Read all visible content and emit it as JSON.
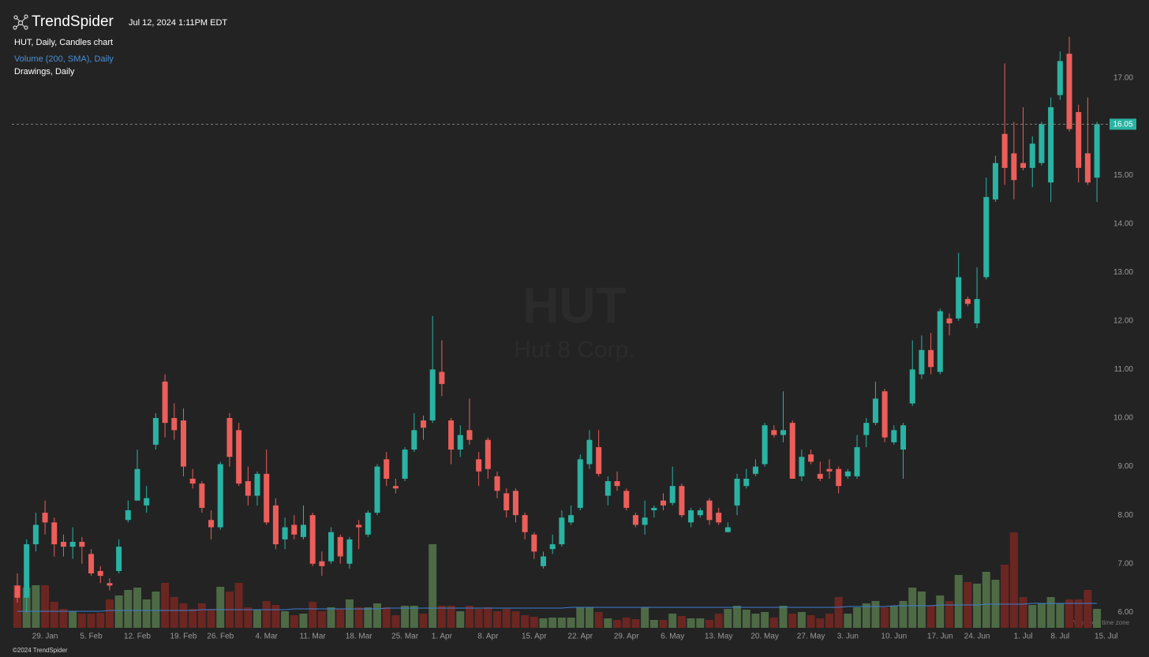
{
  "header": {
    "logo": "TrendSpider",
    "timestamp": "Jul 12, 2024 1:11PM EDT",
    "chart_label": "HUT, Daily, Candles chart",
    "volume_label": "Volume (200, SMA), Daily",
    "drawings_label": "Drawings, Daily",
    "watermark_symbol": "HUT",
    "watermark_name": "Hut 8 Corp.",
    "timezone_note": "Your local time zone",
    "copyright": "©2024 TrendSpider"
  },
  "chart_data": {
    "type": "candlestick",
    "categories": [
      null,
      null,
      null,
      "29. Jan",
      null,
      null,
      null,
      null,
      "5. Feb",
      null,
      null,
      null,
      null,
      "12. Feb",
      null,
      null,
      null,
      null,
      "19. Feb",
      null,
      null,
      null,
      "26. Feb",
      null,
      null,
      null,
      null,
      "4. Mar",
      null,
      null,
      null,
      null,
      "11. Mar",
      null,
      null,
      null,
      null,
      "18. Mar",
      null,
      null,
      null,
      null,
      "25. Mar",
      null,
      null,
      null,
      "1. Apr",
      null,
      null,
      null,
      null,
      "8. Apr",
      null,
      null,
      null,
      null,
      "15. Apr",
      null,
      null,
      null,
      null,
      "22. Apr",
      null,
      null,
      null,
      null,
      "29. Apr",
      null,
      null,
      null,
      null,
      "6. May",
      null,
      null,
      null,
      null,
      "13. May",
      null,
      null,
      null,
      null,
      "20. May",
      null,
      null,
      null,
      null,
      "27. May",
      null,
      null,
      null,
      "3. Jun",
      null,
      null,
      null,
      null,
      "10. Jun",
      null,
      null,
      null,
      null,
      "17. Jun",
      null,
      null,
      null,
      "24. Jun",
      null,
      null,
      null,
      null,
      "1. Jul",
      null,
      null,
      null,
      "8. Jul",
      null,
      null,
      null,
      null,
      "15. Jul"
    ],
    "open": [
      6.55,
      6.3,
      7.4,
      8.05,
      7.85,
      7.45,
      7.35,
      7.45,
      7.2,
      6.85,
      6.6,
      6.85,
      7.9,
      8.3,
      8.2,
      9.45,
      10.75,
      10.0,
      9.95,
      8.75,
      8.65,
      7.9,
      7.75,
      10.0,
      9.75,
      8.7,
      8.4,
      8.85,
      8.2,
      7.5,
      7.8,
      7.55,
      8.0,
      7.05,
      7.05,
      7.55,
      7.0,
      7.8,
      7.6,
      8.05,
      9.15,
      8.6,
      8.75,
      9.35,
      9.95,
      9.95,
      10.95,
      9.95,
      9.35,
      9.75,
      9.15,
      9.55,
      8.8,
      8.45,
      8.5,
      8.0,
      7.6,
      6.95,
      7.3,
      7.4,
      7.85,
      8.15,
      9.05,
      9.4,
      8.4,
      8.7,
      8.5,
      8.0,
      7.8,
      8.1,
      8.3,
      8.25,
      8.6,
      7.85,
      8.0,
      8.3,
      8.05,
      7.65,
      8.2,
      8.6,
      8.85,
      9.05,
      9.75,
      9.65,
      9.9,
      8.8,
      9.25,
      8.85,
      8.95,
      8.95,
      8.8,
      8.8,
      9.65,
      9.9,
      10.55,
      9.5,
      9.35,
      10.3,
      10.9,
      11.4,
      10.95,
      12.05,
      12.05,
      12.45,
      11.95,
      12.9,
      14.5,
      15.85,
      15.45,
      15.25,
      15.15,
      15.25,
      14.85,
      16.65,
      17.5,
      16.3,
      15.45,
      14.95,
      null
    ],
    "high": [
      6.8,
      7.5,
      8.05,
      8.3,
      7.95,
      7.6,
      7.75,
      7.55,
      7.3,
      6.95,
      6.7,
      7.5,
      8.3,
      9.35,
      8.6,
      10.1,
      10.9,
      10.3,
      10.2,
      8.95,
      8.7,
      8.1,
      9.1,
      10.1,
      9.9,
      9.0,
      8.9,
      9.35,
      8.35,
      7.95,
      8.0,
      8.2,
      8.05,
      7.25,
      7.75,
      7.6,
      7.55,
      7.9,
      8.1,
      9.05,
      9.3,
      8.75,
      9.4,
      10.1,
      10.05,
      12.1,
      11.6,
      10.0,
      9.85,
      10.4,
      9.3,
      9.6,
      8.9,
      8.55,
      8.55,
      8.05,
      7.65,
      7.25,
      7.6,
      8.1,
      8.2,
      9.25,
      9.75,
      9.75,
      8.8,
      8.9,
      8.55,
      8.05,
      8.3,
      8.2,
      8.45,
      9.0,
      8.65,
      8.15,
      8.15,
      8.35,
      8.15,
      7.85,
      8.85,
      8.95,
      9.15,
      9.9,
      9.85,
      10.55,
      9.95,
      9.35,
      9.35,
      9.1,
      9.15,
      9.0,
      8.95,
      9.65,
      10.0,
      10.75,
      10.6,
      9.85,
      9.9,
      11.6,
      11.7,
      11.75,
      12.25,
      12.15,
      13.4,
      12.5,
      13.1,
      14.95,
      15.4,
      17.3,
      16.1,
      16.4,
      15.8,
      16.1,
      16.6,
      17.55,
      17.85,
      16.45,
      16.6,
      16.1,
      null
    ],
    "low": [
      6.2,
      6.0,
      7.25,
      7.6,
      7.15,
      7.15,
      7.1,
      7.0,
      6.75,
      6.6,
      6.45,
      6.8,
      7.85,
      8.3,
      8.05,
      9.35,
      9.6,
      9.55,
      8.8,
      8.55,
      8.05,
      7.5,
      7.7,
      9.0,
      8.6,
      8.2,
      8.2,
      7.8,
      7.3,
      7.3,
      7.5,
      7.5,
      6.95,
      6.75,
      7.0,
      7.0,
      6.9,
      7.3,
      7.55,
      8.0,
      8.6,
      8.45,
      8.7,
      9.3,
      9.55,
      9.9,
      10.45,
      9.05,
      9.2,
      9.45,
      8.6,
      8.75,
      8.35,
      7.95,
      7.85,
      7.5,
      7.1,
      6.9,
      7.2,
      7.35,
      7.8,
      8.1,
      8.95,
      8.8,
      8.2,
      8.5,
      8.1,
      7.75,
      7.6,
      7.95,
      8.1,
      8.2,
      7.95,
      7.75,
      7.95,
      7.8,
      7.8,
      7.65,
      8.0,
      8.55,
      8.8,
      9.0,
      9.6,
      9.5,
      8.75,
      8.7,
      9.05,
      8.7,
      8.75,
      8.45,
      8.75,
      8.75,
      9.4,
      9.85,
      9.5,
      9.45,
      8.75,
      10.25,
      10.8,
      10.9,
      10.9,
      11.7,
      12.0,
      12.3,
      11.85,
      12.85,
      14.45,
      14.8,
      14.5,
      15.1,
      14.75,
      15.2,
      14.45,
      16.55,
      15.9,
      14.85,
      14.8,
      14.45,
      null
    ],
    "close": [
      6.3,
      7.4,
      7.8,
      7.85,
      7.4,
      7.35,
      7.45,
      7.35,
      6.8,
      6.75,
      6.55,
      7.35,
      8.1,
      8.95,
      8.35,
      10.0,
      9.9,
      9.75,
      9.0,
      8.65,
      8.15,
      7.75,
      9.05,
      9.2,
      8.65,
      8.4,
      8.85,
      7.85,
      7.4,
      7.75,
      7.6,
      7.8,
      7.0,
      6.95,
      7.65,
      7.15,
      7.5,
      7.75,
      8.05,
      9.0,
      8.75,
      8.55,
      9.35,
      9.75,
      9.8,
      11.0,
      10.7,
      9.35,
      9.65,
      9.55,
      8.9,
      8.95,
      8.5,
      8.1,
      8.0,
      7.65,
      7.25,
      7.15,
      7.4,
      7.95,
      8.0,
      9.15,
      9.55,
      8.85,
      8.7,
      8.6,
      8.15,
      7.8,
      7.95,
      8.15,
      8.2,
      8.6,
      8.0,
      8.1,
      8.1,
      7.9,
      7.85,
      7.75,
      8.75,
      8.75,
      9.0,
      9.85,
      9.65,
      9.75,
      8.75,
      9.2,
      9.1,
      8.75,
      8.9,
      8.6,
      8.9,
      9.4,
      9.9,
      10.4,
      9.6,
      9.75,
      9.85,
      11.0,
      11.4,
      11.05,
      12.2,
      11.95,
      12.9,
      12.35,
      12.45,
      14.55,
      15.25,
      15.15,
      14.9,
      15.15,
      15.65,
      16.05,
      16.4,
      17.35,
      15.95,
      15.15,
      14.85,
      16.05,
      null
    ],
    "volume": [
      5.4,
      5.1,
      5.4,
      5.4,
      3.3,
      2.4,
      2.1,
      1.8,
      1.8,
      1.9,
      3.6,
      4.1,
      4.8,
      5.1,
      3.6,
      4.6,
      5.7,
      3.9,
      3.1,
      2.4,
      3.1,
      2.4,
      5.2,
      4.6,
      5.7,
      2.6,
      2.3,
      3.4,
      2.9,
      2.1,
      1.6,
      1.8,
      3.3,
      2.1,
      2.6,
      2.4,
      3.6,
      2.6,
      2.6,
      3.1,
      2.6,
      1.6,
      2.8,
      2.8,
      1.8,
      10.6,
      2.8,
      2.8,
      2.1,
      2.8,
      2.4,
      2.6,
      2.1,
      2.4,
      2.1,
      1.6,
      1.4,
      1.2,
      1.3,
      1.3,
      1.3,
      2.6,
      2.6,
      2.0,
      1.2,
      1.0,
      1.3,
      1.1,
      2.6,
      1.0,
      1.0,
      1.8,
      1.5,
      1.2,
      1.2,
      1.0,
      1.8,
      2.4,
      2.8,
      2.3,
      1.8,
      2.0,
      1.3,
      2.8,
      1.8,
      2.0,
      1.6,
      1.2,
      1.8,
      3.9,
      1.8,
      2.6,
      3.1,
      3.4,
      2.6,
      2.8,
      3.4,
      5.1,
      4.6,
      2.8,
      4.1,
      3.4,
      6.7,
      5.8,
      5.6,
      7.1,
      6.1,
      8.0,
      12.1,
      3.9,
      2.9,
      3.1,
      3.9,
      3.1,
      3.6,
      3.6,
      4.8,
      2.4,
      null
    ],
    "volume_sma": [
      2.1,
      2.1,
      2.1,
      2.1,
      2.1,
      2.1,
      2.1,
      2.1,
      2.1,
      2.1,
      2.2,
      2.2,
      2.2,
      2.2,
      2.2,
      2.2,
      2.2,
      2.2,
      2.2,
      2.2,
      2.3,
      2.3,
      2.3,
      2.3,
      2.3,
      2.3,
      2.3,
      2.3,
      2.3,
      2.3,
      2.4,
      2.4,
      2.4,
      2.4,
      2.4,
      2.4,
      2.4,
      2.4,
      2.4,
      2.4,
      2.5,
      2.5,
      2.5,
      2.5,
      2.5,
      2.5,
      2.5,
      2.5,
      2.5,
      2.5,
      2.5,
      2.5,
      2.5,
      2.5,
      2.5,
      2.5,
      2.5,
      2.5,
      2.5,
      2.5,
      2.6,
      2.6,
      2.6,
      2.6,
      2.6,
      2.6,
      2.6,
      2.6,
      2.6,
      2.6,
      2.6,
      2.6,
      2.6,
      2.6,
      2.6,
      2.6,
      2.6,
      2.6,
      2.6,
      2.6,
      2.6,
      2.6,
      2.6,
      2.6,
      2.6,
      2.6,
      2.6,
      2.6,
      2.6,
      2.6,
      2.7,
      2.7,
      2.7,
      2.7,
      2.7,
      2.8,
      2.8,
      2.8,
      2.8,
      2.8,
      2.9,
      2.9,
      2.9,
      2.9,
      2.9,
      3.0,
      3.0,
      3.0,
      3.0,
      3.0,
      3.1,
      3.1,
      3.1,
      3.1,
      3.1,
      3.1,
      3.1,
      3.1,
      null
    ],
    "ylim": [
      5.68,
      18.12
    ],
    "yticks": [
      {
        "value": 6,
        "label": "6.00"
      },
      {
        "value": 7,
        "label": "7.00"
      },
      {
        "value": 8,
        "label": "8.00"
      },
      {
        "value": 9,
        "label": "9.00"
      },
      {
        "value": 10,
        "label": "10.00"
      },
      {
        "value": 11,
        "label": "11.00"
      },
      {
        "value": 12,
        "label": "12.00"
      },
      {
        "value": 13,
        "label": "13.00"
      },
      {
        "value": 14,
        "label": "14.00"
      },
      {
        "value": 15,
        "label": "15.00"
      },
      {
        "value": 16,
        "label": "16.00"
      },
      {
        "value": 17,
        "label": "17.00"
      }
    ],
    "grid": false,
    "up_color": "#2ab3a3",
    "down_color": "#ec5e5a",
    "up_volume_color": "#4d6a45",
    "down_volume_color": "#6b2621",
    "sma_color": "#3d7fd4"
  }
}
